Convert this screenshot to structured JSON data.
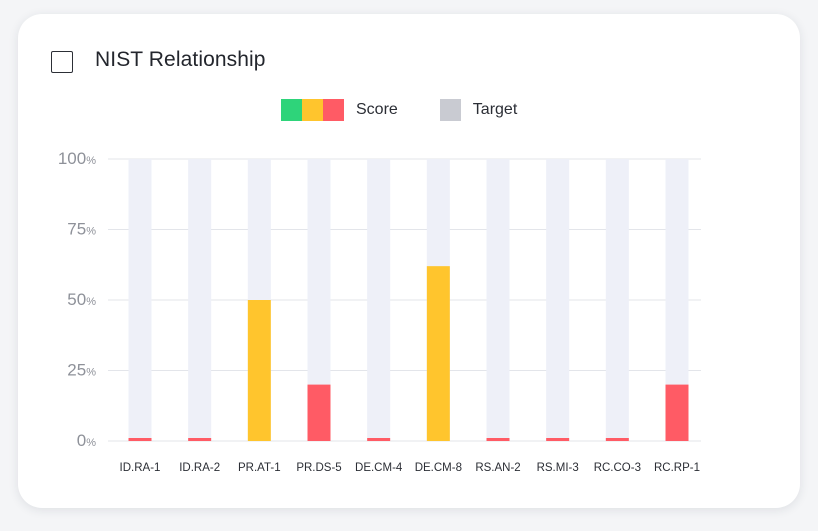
{
  "card": {
    "title": "NIST Relationship"
  },
  "legend": {
    "score_label": "Score",
    "target_label": "Target",
    "score_colors": [
      "#2ed47a",
      "#ffc52d",
      "#ff5b65"
    ],
    "target_color": "#c9cbd2"
  },
  "chart_data": {
    "type": "bar",
    "categories": [
      "ID.RA-1",
      "ID.RA-2",
      "PR.AT-1",
      "PR.DS-5",
      "DE.CM-4",
      "DE.CM-8",
      "RS.AN-2",
      "RS.MI-3",
      "RC.CO-3",
      "RC.RP-1"
    ],
    "series": [
      {
        "name": "Score",
        "values": [
          1,
          1,
          50,
          20,
          1,
          62,
          1,
          1,
          1,
          20
        ]
      },
      {
        "name": "Target",
        "values": [
          100,
          100,
          100,
          100,
          100,
          100,
          100,
          100,
          100,
          100
        ]
      }
    ],
    "bar_colors": [
      "#ff5b65",
      "#ff5b65",
      "#ffc52d",
      "#ff5b65",
      "#ff5b65",
      "#ffc52d",
      "#ff5b65",
      "#ff5b65",
      "#ff5b65",
      "#ff5b65"
    ],
    "target_bar_color": "#eef0f8",
    "yticks": [
      {
        "value": 0,
        "num": "0",
        "unit": "%"
      },
      {
        "value": 25,
        "num": "25",
        "unit": "%"
      },
      {
        "value": 50,
        "num": "50",
        "unit": "%"
      },
      {
        "value": 75,
        "num": "75",
        "unit": "%"
      },
      {
        "value": 100,
        "num": "100",
        "unit": "%"
      }
    ],
    "ylim": [
      0,
      100
    ],
    "grid": true,
    "legend_position": "top-center"
  }
}
